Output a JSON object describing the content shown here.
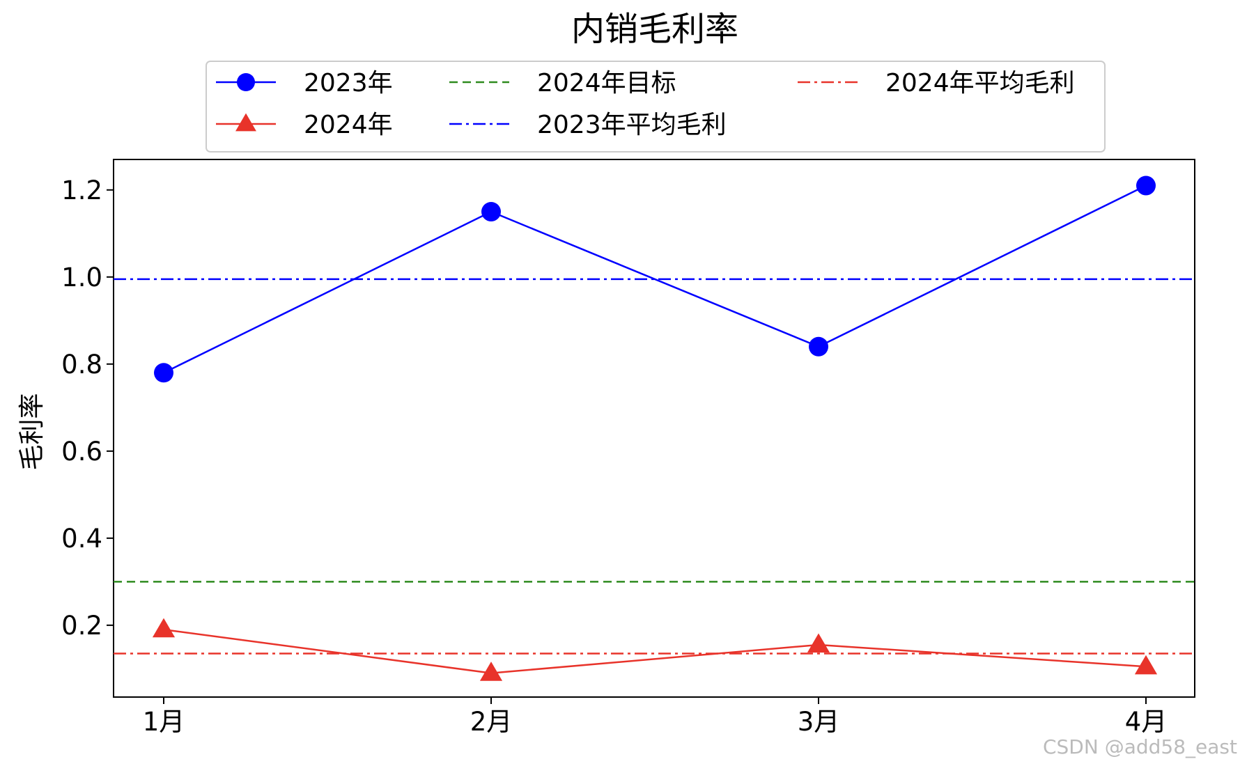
{
  "chart_data": {
    "type": "line",
    "title": "内销毛利率",
    "xlabel": "",
    "ylabel": "毛利率",
    "categories": [
      "1月",
      "2月",
      "3月",
      "4月"
    ],
    "ylim": [
      0.035,
      1.27
    ],
    "yticks": [
      "0.2",
      "0.4",
      "0.6",
      "0.8",
      "1.0",
      "1.2"
    ],
    "grid": false,
    "legend_position": "top-center",
    "series": [
      {
        "name": "2023年",
        "values": [
          0.78,
          1.15,
          0.84,
          1.21
        ],
        "color": "#0000ff",
        "marker": "circle",
        "line_style": "solid"
      },
      {
        "name": "2024年",
        "values": [
          0.19,
          0.09,
          0.155,
          0.105
        ],
        "color": "#e8332a",
        "marker": "triangle",
        "line_style": "solid"
      }
    ],
    "reference_lines": [
      {
        "name": "2024年目标",
        "value": 0.3,
        "color": "#2e8b1e",
        "line_style": "dashed"
      },
      {
        "name": "2023年平均毛利",
        "value": 0.995,
        "color": "#0000ff",
        "line_style": "dashdot"
      },
      {
        "name": "2024年平均毛利",
        "value": 0.135,
        "color": "#e8332a",
        "line_style": "dashdot"
      }
    ],
    "legend_order": [
      "2023年",
      "2024年",
      "2024年目标",
      "2023年平均毛利",
      "2024年平均毛利"
    ]
  },
  "watermark": "CSDN @add58_east"
}
